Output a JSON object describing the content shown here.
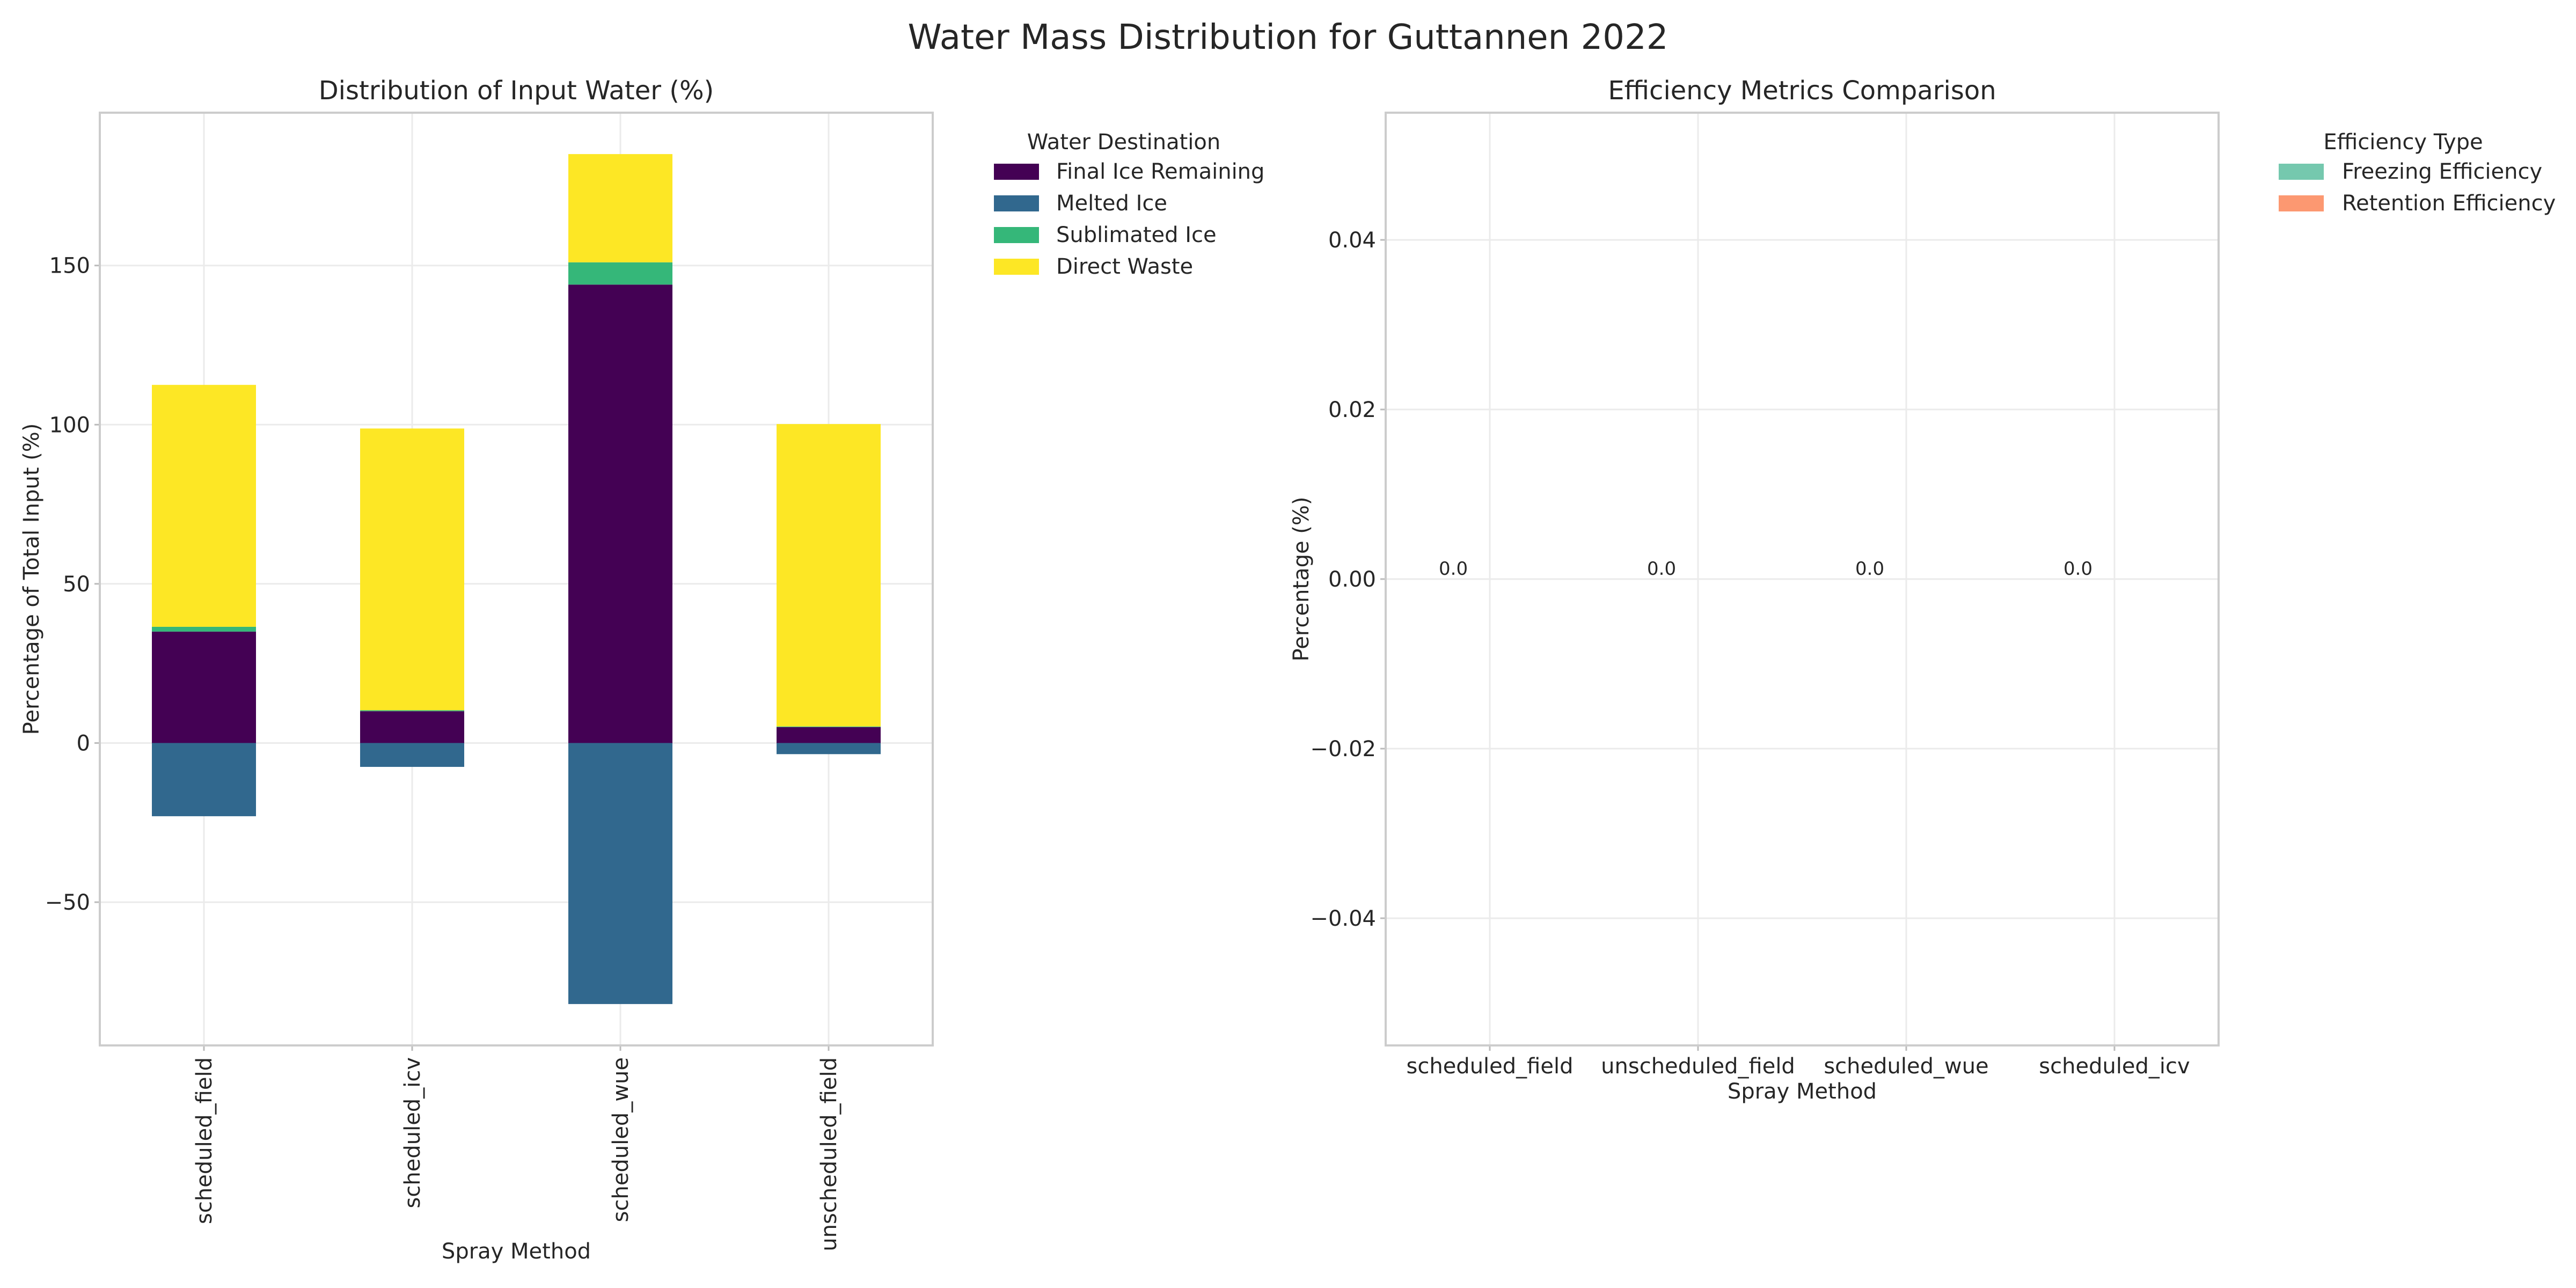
{
  "figure": {
    "title": "Water Mass Distribution for Guttannen 2022"
  },
  "chart_data": [
    {
      "type": "bar",
      "stacked": true,
      "title": "Distribution of Input Water (%)",
      "xlabel": "Spray Method",
      "ylabel": "Percentage of Total Input (%)",
      "categories": [
        "scheduled_field",
        "scheduled_icv",
        "scheduled_wue",
        "unscheduled_field"
      ],
      "series": [
        {
          "name": "Final Ice Remaining",
          "values": [
            35,
            10,
            144,
            5
          ],
          "color": "#440154"
        },
        {
          "name": "Melted Ice",
          "values": [
            -23,
            -7.5,
            -82,
            -3.5
          ],
          "color": "#31688e"
        },
        {
          "name": "Sublimated Ice",
          "values": [
            1.5,
            0.3,
            7,
            0.2
          ],
          "color": "#35b779"
        },
        {
          "name": "Direct Waste",
          "values": [
            76,
            88.5,
            34,
            95
          ],
          "color": "#fde725"
        }
      ],
      "ylim": [
        -95,
        198
      ],
      "yticks": [
        -50,
        0,
        50,
        100,
        150
      ],
      "ytick_labels": [
        "−50",
        "0",
        "50",
        "100",
        "150"
      ],
      "grid": true,
      "legend": {
        "title": "Water Destination",
        "placement": "outside-right-top"
      }
    },
    {
      "type": "bar",
      "title": "Efficiency Metrics Comparison",
      "xlabel": "Spray Method",
      "ylabel": "Percentage (%)",
      "categories": [
        "scheduled_field",
        "unscheduled_field",
        "scheduled_wue",
        "scheduled_icv"
      ],
      "series": [
        {
          "name": "Freezing Efficiency",
          "values": [
            0,
            0,
            0,
            0
          ],
          "color": "#66c2a5"
        },
        {
          "name": "Retention Efficiency",
          "values": [
            0,
            0,
            0,
            0
          ],
          "color": "#fc8d62"
        }
      ],
      "data_labels": [
        "0.0",
        "0.0",
        "0.0",
        "0.0"
      ],
      "ylim": [
        -0.055,
        0.055
      ],
      "yticks": [
        -0.04,
        -0.02,
        0,
        0.02,
        0.04
      ],
      "ytick_labels": [
        "−0.04",
        "−0.02",
        "0.00",
        "0.02",
        "0.04"
      ],
      "grid": true,
      "legend": {
        "title": "Efficiency Type",
        "placement": "outside-right-top"
      }
    }
  ]
}
